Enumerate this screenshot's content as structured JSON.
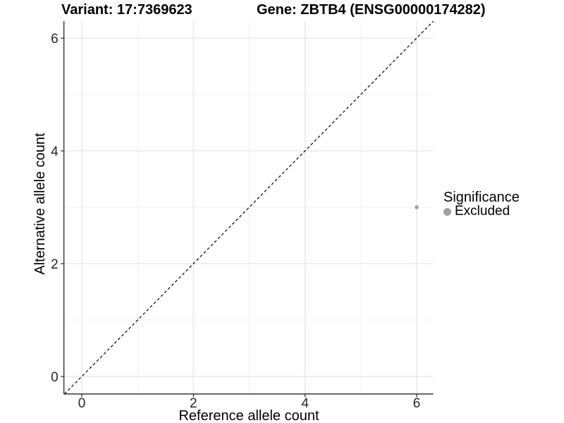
{
  "chart_data": {
    "type": "scatter",
    "titles": {
      "variant": "Variant: 17:7369623",
      "gene": "Gene: ZBTB4 (ENSG00000174282)"
    },
    "xlabel": "Reference allele count",
    "ylabel": "Alternative allele count",
    "xlim": [
      -0.32,
      6.3
    ],
    "ylim": [
      -0.31,
      6.3
    ],
    "x_tick_values": [
      0,
      2,
      4,
      6
    ],
    "x_tick_labels": [
      "0",
      "2",
      "4",
      "6"
    ],
    "y_tick_values": [
      0,
      2,
      4,
      6
    ],
    "y_tick_labels": [
      "0",
      "2",
      "4",
      "6"
    ],
    "x_minor_ticks": [
      1,
      3,
      5
    ],
    "y_minor_ticks": [
      1,
      3,
      5
    ],
    "grid": {
      "major": true,
      "minor": true
    },
    "reference_line": {
      "slope": 1,
      "intercept": 0,
      "style": "dashed",
      "color": "#000000"
    },
    "series": [
      {
        "name": "Excluded",
        "color": "#a0a0a0",
        "points": [
          [
            6,
            3
          ]
        ]
      }
    ],
    "legend": {
      "title": "Significance",
      "position": "right",
      "entries": [
        {
          "label": "Excluded",
          "color": "#a0a0a0"
        }
      ]
    }
  },
  "colors": {
    "background": "#ffffff",
    "axis_line": "#262626",
    "tick_label": "#262626",
    "grid_major": "#e3e3e3",
    "grid_minor": "#f0f0f0",
    "title_text": "#000000"
  }
}
